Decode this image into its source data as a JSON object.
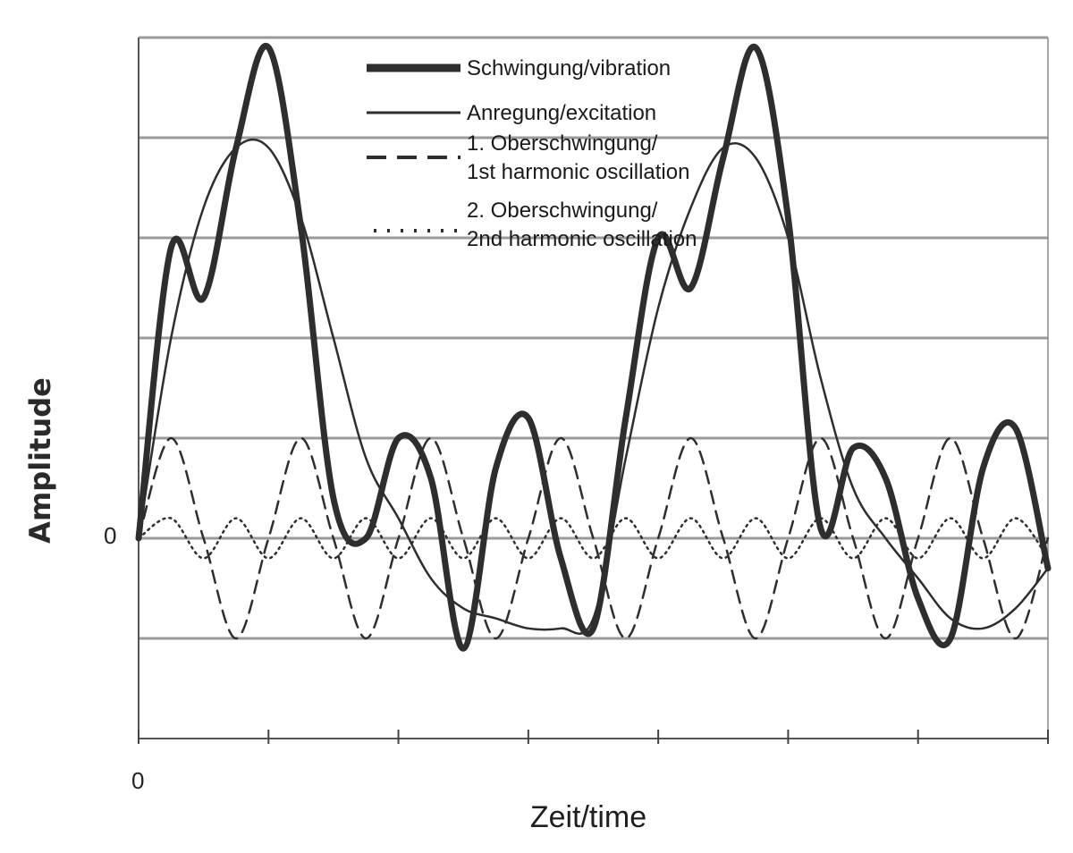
{
  "chart_data": {
    "type": "line",
    "title": "",
    "xlabel": "Zeit/time",
    "ylabel": "Amplitude",
    "x_tick_label": "0",
    "y_tick_label": "0",
    "xlim": [
      0,
      7
    ],
    "ylim": [
      -2,
      5
    ],
    "x_ticks": [
      0,
      1,
      2,
      3,
      4,
      5,
      6,
      7
    ],
    "grid_y": [
      -1,
      0,
      1,
      2,
      3,
      4,
      5
    ],
    "grid": true,
    "legend_position": "top-center",
    "x": [
      0,
      0.25,
      0.5,
      0.75,
      1,
      1.25,
      1.5,
      1.75,
      2,
      2.25,
      2.5,
      2.75,
      3,
      3.25,
      3.5,
      3.75,
      4,
      4.25,
      4.5,
      4.75,
      5,
      5.25,
      5.5,
      5.75,
      6,
      6.25,
      6.5,
      6.75,
      7
    ],
    "series": [
      {
        "name": "Schwingung/vibration",
        "style": "thick",
        "values": [
          0,
          2.9,
          2.4,
          3.9,
          4.9,
          3.1,
          0.4,
          0,
          1,
          0.6,
          -1.1,
          0.7,
          1.2,
          -0.2,
          -0.9,
          1.2,
          3.0,
          2.5,
          3.8,
          4.9,
          3.2,
          0.1,
          0.9,
          0.6,
          -0.6,
          -1.0,
          0.7,
          1.1,
          -0.3
        ]
      },
      {
        "name": "Anregung/excitation",
        "style": "thin",
        "values": [
          0,
          2.0,
          3.3,
          3.9,
          3.9,
          3.2,
          2.0,
          0.8,
          0.2,
          -0.4,
          -0.7,
          -0.8,
          -0.9,
          -0.9,
          -0.8,
          0.8,
          2.3,
          3.3,
          3.9,
          3.8,
          3.0,
          1.6,
          0.5,
          0,
          -0.4,
          -0.8,
          -0.9,
          -0.7,
          -0.3
        ]
      },
      {
        "name": "1. Oberschwingung/\n1st harmonic oscillation",
        "style": "dashed",
        "values": [
          0,
          1.0,
          0,
          -1.0,
          0,
          1.0,
          0,
          -1.0,
          0,
          1.0,
          0,
          -1.0,
          0,
          1.0,
          0,
          -1.0,
          0,
          1.0,
          0,
          -1.0,
          0,
          1.0,
          0,
          -1.0,
          0,
          1.0,
          0,
          -1.0,
          0
        ]
      },
      {
        "name": "2. Oberschwingung/\n2nd harmonic oscillation",
        "style": "dotted",
        "values": [
          0,
          0.2,
          -0.2,
          0.2,
          -0.2,
          0.2,
          -0.2,
          0.2,
          -0.2,
          0.2,
          -0.2,
          0.2,
          -0.2,
          0.2,
          -0.2,
          0.2,
          -0.2,
          0.2,
          -0.2,
          0.2,
          -0.2,
          0.2,
          -0.2,
          0.2,
          -0.2,
          0.2,
          -0.2,
          0.2,
          -0.2
        ]
      }
    ],
    "colors": {
      "line": "#2e2e2e",
      "grid": "#9a9a9a",
      "axis": "#555555"
    }
  }
}
